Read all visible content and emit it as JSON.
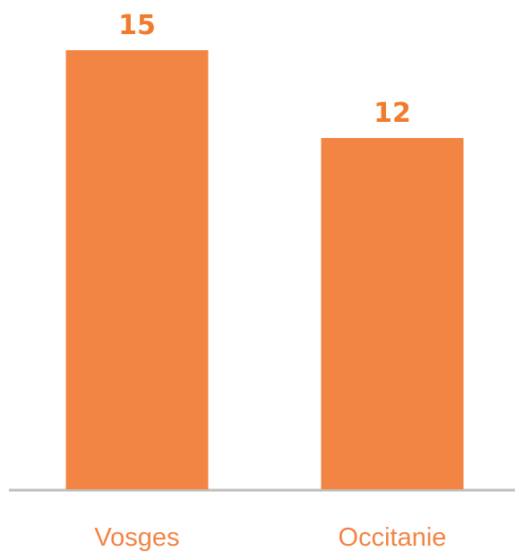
{
  "chart_data": {
    "type": "bar",
    "categories": [
      "Vosges",
      "Occitanie"
    ],
    "values": [
      15,
      12
    ],
    "data_labels": [
      "15",
      "12"
    ],
    "title": "",
    "xlabel": "",
    "ylabel": "",
    "ylim": [
      0,
      15
    ],
    "grid": false,
    "legend": "none",
    "colors": {
      "bar": "#F28444",
      "value_label": "#F07B2C",
      "category_label": "#F28444",
      "baseline": "#BFBFBF"
    }
  }
}
